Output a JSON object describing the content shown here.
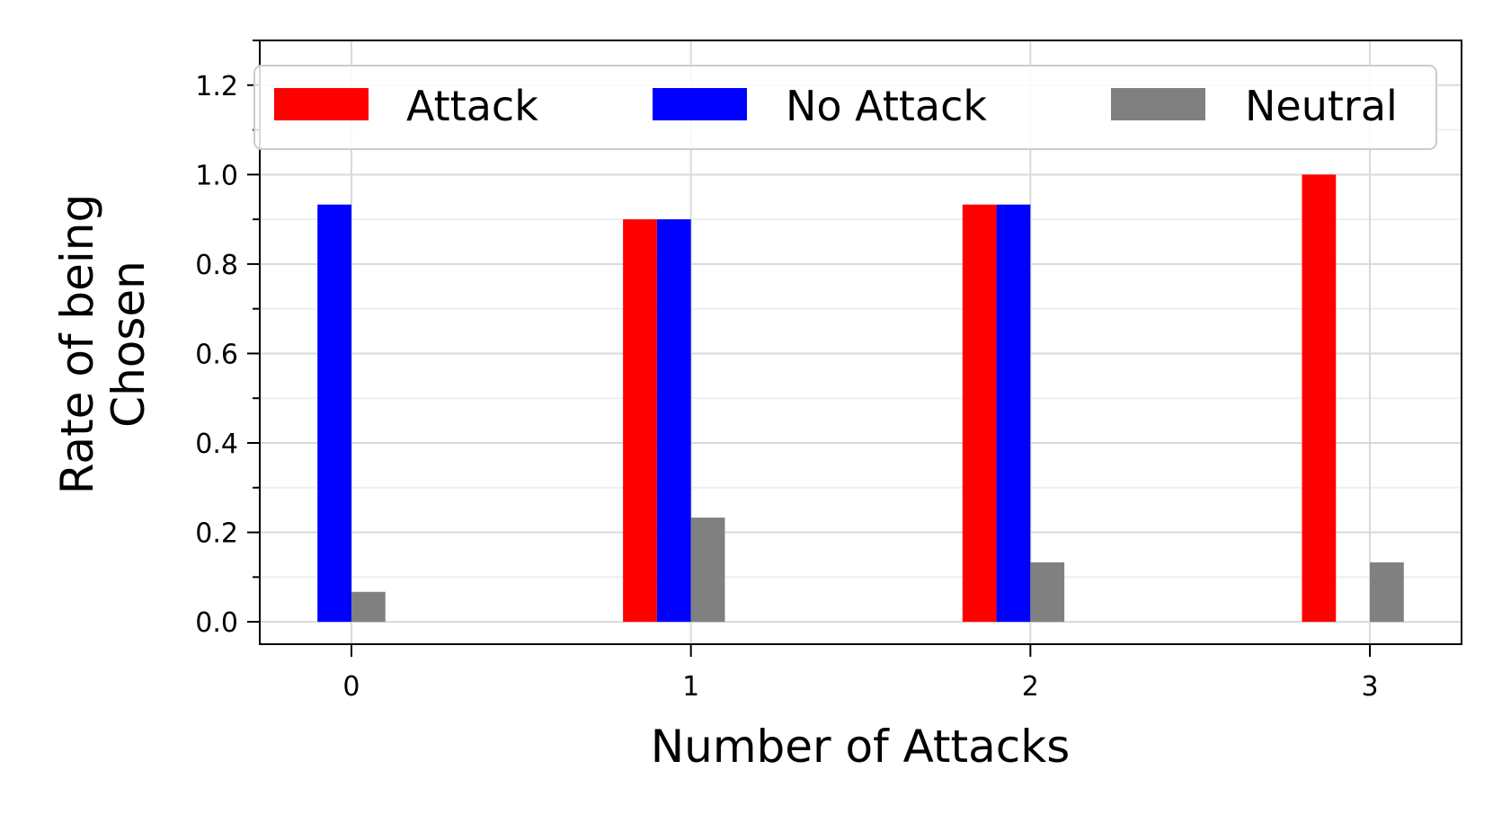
{
  "chart_data": {
    "type": "bar",
    "xlabel": "Number of Attacks",
    "ylabel_lines": [
      "Rate of being",
      "Chosen"
    ],
    "categories": [
      0,
      1,
      2,
      3
    ],
    "x_tick_labels": [
      "0",
      "1",
      "2",
      "3"
    ],
    "y_tick_labels": [
      "0.0",
      "0.2",
      "0.4",
      "0.6",
      "0.8",
      "1.0",
      "1.2"
    ],
    "y_ticks": [
      0,
      0.2,
      0.4,
      0.6,
      0.8,
      1.0,
      1.2
    ],
    "ylim": [
      -0.05,
      1.3
    ],
    "xlim": [
      -0.27,
      3.27
    ],
    "grid": "on",
    "legend_placement": "top",
    "series": [
      {
        "name": "Attack",
        "color": "#ff0000",
        "values": [
          0,
          0.9,
          0.933,
          1.0
        ]
      },
      {
        "name": "No Attack",
        "color": "#0000ff",
        "values": [
          0.933,
          0.9,
          0.933,
          0
        ]
      },
      {
        "name": "Neutral",
        "color": "#808080",
        "values": [
          0.067,
          0.233,
          0.133,
          0.133
        ]
      }
    ]
  }
}
